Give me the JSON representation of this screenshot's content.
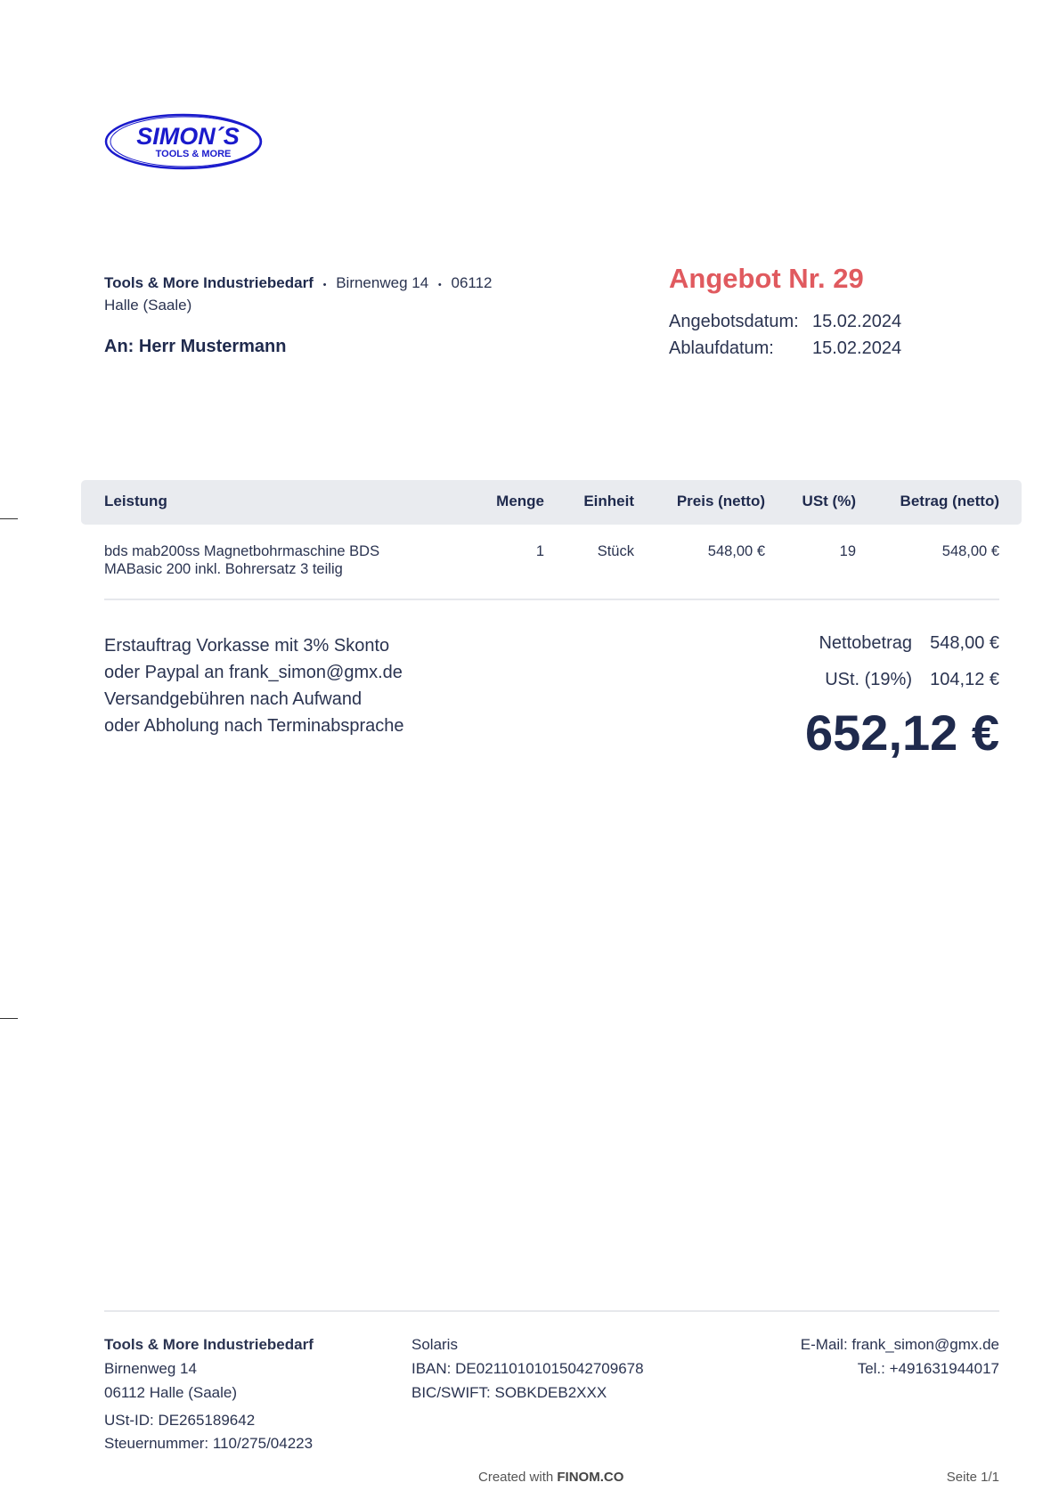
{
  "logo": {
    "text_main": "SIMON´S",
    "text_sub": "TOOLS & MORE",
    "color": "#1a1acc"
  },
  "sender": {
    "company": "Tools & More Industriebedarf",
    "street": "Birnenweg 14",
    "zip": "06112",
    "city": "Halle (Saale)"
  },
  "recipient": "An: Herr Mustermann",
  "offer": {
    "title": "Angebot Nr. 29",
    "title_color": "#e05a5f",
    "date_label": "Angebotsdatum:",
    "date_value": "15.02.2024",
    "expiry_label": "Ablaufdatum:",
    "expiry_value": "15.02.2024"
  },
  "table": {
    "headers": [
      "Leistung",
      "Menge",
      "Einheit",
      "Preis (netto)",
      "USt (%)",
      "Betrag (netto)"
    ],
    "rows": [
      {
        "description_line1": "bds mab200ss Magnetbohrmaschine BDS",
        "description_line2": "MABasic 200 inkl. Bohrersatz 3 teilig",
        "quantity": "1",
        "unit": "Stück",
        "price": "548,00 €",
        "vat": "19",
        "amount": "548,00 €"
      }
    ]
  },
  "notes": [
    "Erstauftrag Vorkasse mit 3% Skonto",
    "oder Paypal an frank_simon@gmx.de",
    "Versandgebühren nach Aufwand",
    "oder Abholung nach Terminabsprache"
  ],
  "totals": {
    "net_label": "Nettobetrag",
    "net_value": "548,00 €",
    "vat_label": "USt. (19%)",
    "vat_value": "104,12 €",
    "total": "652,12 €"
  },
  "footer": {
    "company": "Tools & More Industriebedarf",
    "street": "Birnenweg 14",
    "city": "06112 Halle (Saale)",
    "vat_id": "USt-ID: DE265189642",
    "tax_no": "Steuernummer: 110/275/04223",
    "bank": "Solaris",
    "iban": "IBAN: DE02110101015042709678",
    "bic": "BIC/SWIFT: SOBKDEB2XXX",
    "email": "E-Mail: frank_simon@gmx.de",
    "phone": "Tel.: +491631944017",
    "created_prefix": "Created with",
    "created_brand": "FINOM.CO",
    "page": "Seite 1/1"
  }
}
